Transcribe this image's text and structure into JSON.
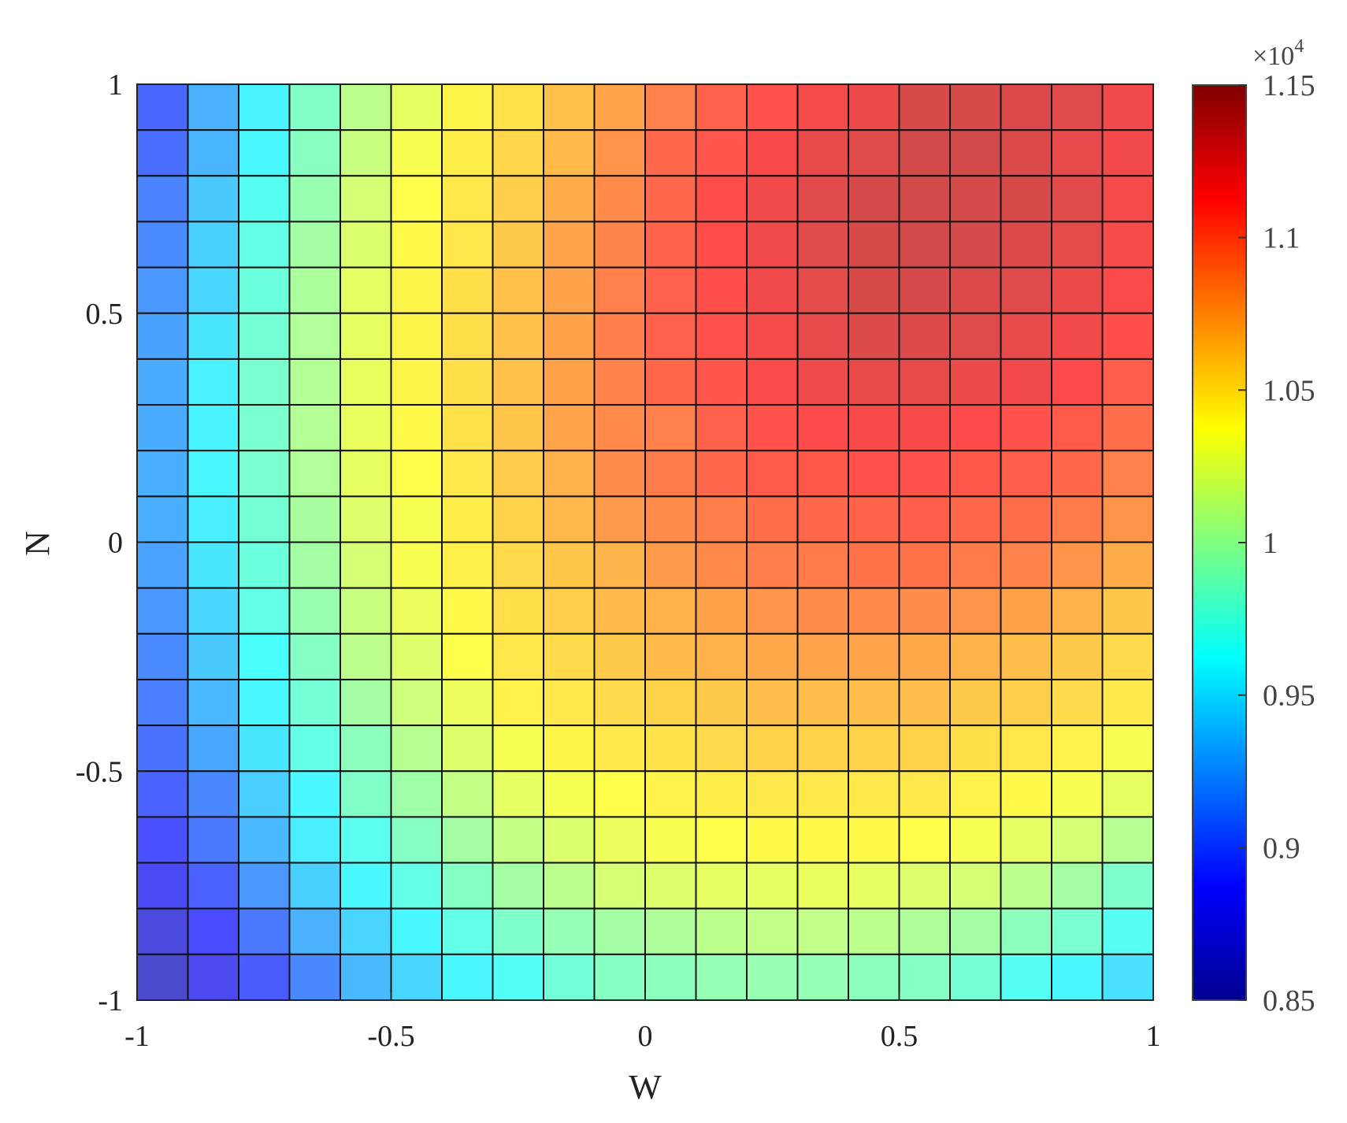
{
  "chart_data": {
    "type": "heatmap",
    "xlabel": "W",
    "ylabel": "N",
    "xlim": [
      -1,
      1
    ],
    "ylim": [
      -1,
      1
    ],
    "x": [
      -0.95,
      -0.85,
      -0.75,
      -0.65,
      -0.55,
      -0.45,
      -0.35,
      -0.25,
      -0.15,
      -0.05,
      0.05,
      0.15,
      0.25,
      0.35,
      0.45,
      0.55,
      0.65,
      0.75,
      0.85,
      0.95
    ],
    "y": [
      0.95,
      0.85,
      0.75,
      0.65,
      0.55,
      0.45,
      0.35,
      0.25,
      0.15,
      0.05,
      -0.05,
      -0.15,
      -0.25,
      -0.35,
      -0.45,
      -0.55,
      -0.65,
      -0.75,
      -0.85,
      -0.95
    ],
    "xticks": [
      -1,
      -0.5,
      0,
      0.5,
      1
    ],
    "xtick_labels": [
      "-1",
      "-0.5",
      "0",
      "0.5",
      "1"
    ],
    "yticks": [
      -1,
      -0.5,
      0,
      0.5,
      1
    ],
    "ytick_labels": [
      "-1",
      "-0.5",
      "0",
      "0.5",
      "1"
    ],
    "grid": true,
    "colormap": "jet",
    "colorbar": {
      "limits": [
        8500,
        11500
      ],
      "ticks": [
        8500,
        9000,
        9500,
        10000,
        10500,
        11000,
        11500
      ],
      "tick_labels": [
        "0.85",
        "0.9",
        "0.95",
        "1",
        "1.05",
        "1.1",
        "1.15"
      ],
      "multiplier_prefix": "×10",
      "multiplier_exp": "4",
      "placement": "right"
    },
    "z": [
      [
        9000,
        9300,
        9580,
        9850,
        10100,
        10280,
        10420,
        10500,
        10630,
        10750,
        10900,
        11030,
        11100,
        11170,
        11210,
        11290,
        11290,
        11280,
        11250,
        11180
      ],
      [
        9030,
        9320,
        9600,
        9880,
        10150,
        10350,
        10450,
        10550,
        10660,
        10820,
        11000,
        11080,
        11150,
        11220,
        11260,
        11310,
        11310,
        11280,
        11230,
        11180
      ],
      [
        9120,
        9400,
        9680,
        9950,
        10200,
        10380,
        10470,
        10580,
        10720,
        10860,
        11000,
        11110,
        11180,
        11250,
        11300,
        11310,
        11300,
        11290,
        11250,
        11170
      ],
      [
        9150,
        9430,
        9730,
        10000,
        10230,
        10400,
        10480,
        10600,
        10750,
        10880,
        11020,
        11110,
        11180,
        11250,
        11290,
        11310,
        11300,
        11280,
        11240,
        11160
      ],
      [
        9200,
        9460,
        9760,
        10030,
        10270,
        10420,
        10510,
        10630,
        10760,
        10900,
        11030,
        11110,
        11180,
        11240,
        11290,
        11300,
        11280,
        11260,
        11210,
        11140
      ],
      [
        9240,
        9520,
        9800,
        10050,
        10280,
        10420,
        10510,
        10630,
        10760,
        10910,
        11030,
        11100,
        11170,
        11230,
        11270,
        11270,
        11260,
        11230,
        11180,
        11110
      ],
      [
        9280,
        9570,
        9820,
        10060,
        10290,
        10420,
        10510,
        10630,
        10760,
        10890,
        11010,
        11080,
        11140,
        11190,
        11220,
        11230,
        11210,
        11180,
        11130,
        11040
      ],
      [
        9280,
        9580,
        9820,
        10060,
        10290,
        10400,
        10500,
        10620,
        10750,
        10860,
        10900,
        11030,
        11090,
        11130,
        11150,
        11150,
        11130,
        11090,
        11060,
        10980
      ],
      [
        9290,
        9590,
        9820,
        10050,
        10280,
        10380,
        10470,
        10590,
        10700,
        10850,
        10920,
        11000,
        11060,
        11070,
        11090,
        11090,
        11070,
        11040,
        11000,
        10900
      ],
      [
        9290,
        9560,
        9800,
        10020,
        10240,
        10340,
        10450,
        10560,
        10670,
        10790,
        10850,
        10910,
        10980,
        11010,
        11020,
        11040,
        11010,
        10980,
        10920,
        10820
      ],
      [
        9250,
        9520,
        9760,
        10000,
        10200,
        10350,
        10440,
        10530,
        10610,
        10690,
        10790,
        10860,
        10910,
        10920,
        10960,
        10960,
        10920,
        10890,
        10820,
        10720
      ],
      [
        9200,
        9460,
        9730,
        9950,
        10150,
        10300,
        10400,
        10510,
        10580,
        10660,
        10700,
        10760,
        10820,
        10850,
        10860,
        10850,
        10820,
        10760,
        10700,
        10610
      ],
      [
        9140,
        9400,
        9620,
        9870,
        10100,
        10240,
        10370,
        10480,
        10530,
        10600,
        10660,
        10700,
        10730,
        10750,
        10750,
        10730,
        10700,
        10640,
        10600,
        10530
      ],
      [
        9100,
        9330,
        9600,
        9800,
        10000,
        10170,
        10300,
        10430,
        10480,
        10530,
        10560,
        10600,
        10640,
        10640,
        10640,
        10640,
        10600,
        10580,
        10530,
        10470
      ],
      [
        9040,
        9260,
        9520,
        9730,
        9900,
        10080,
        10240,
        10340,
        10420,
        10470,
        10490,
        10530,
        10560,
        10560,
        10560,
        10560,
        10510,
        10480,
        10430,
        10350
      ],
      [
        8980,
        9130,
        9420,
        9600,
        9850,
        9980,
        10130,
        10270,
        10340,
        10380,
        10430,
        10450,
        10470,
        10470,
        10470,
        10470,
        10430,
        10400,
        10350,
        10280
      ],
      [
        8900,
        9070,
        9330,
        9560,
        9690,
        9870,
        10000,
        10130,
        10230,
        10300,
        10350,
        10380,
        10400,
        10400,
        10400,
        10380,
        10340,
        10270,
        10200,
        10080
      ],
      [
        8830,
        8970,
        9200,
        9430,
        9600,
        9730,
        9870,
        10000,
        10100,
        10200,
        10240,
        10270,
        10280,
        10290,
        10280,
        10240,
        10200,
        10100,
        10000,
        9840
      ],
      [
        8720,
        8880,
        9070,
        9300,
        9450,
        9600,
        9720,
        9840,
        9930,
        10000,
        10040,
        10100,
        10120,
        10120,
        10100,
        10040,
        10000,
        9900,
        9820,
        9680
      ],
      [
        8650,
        8800,
        8950,
        9130,
        9330,
        9460,
        9590,
        9660,
        9790,
        9870,
        9900,
        9930,
        9940,
        9930,
        9900,
        9870,
        9800,
        9670,
        9600,
        9500
      ]
    ]
  }
}
